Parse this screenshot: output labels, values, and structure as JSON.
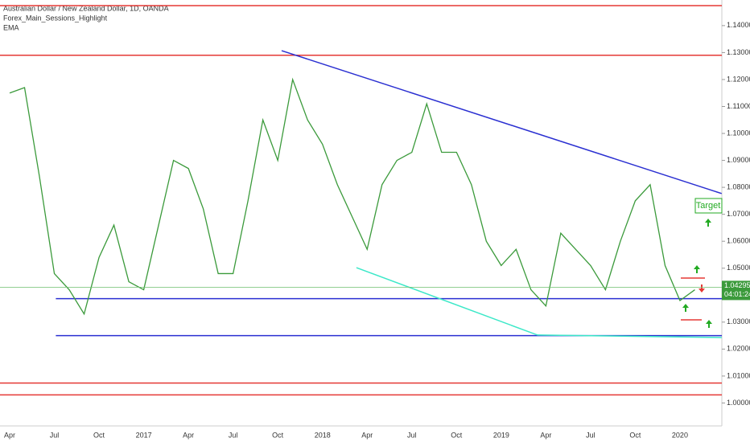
{
  "chart_data": {
    "type": "line",
    "title": "Australian Dollar / New Zealand Dollar, 1D, OANDA",
    "indicators": [
      "Forex_Main_Sessions_Highlight",
      "EMA"
    ],
    "categories": [
      "Apr",
      null,
      null,
      "Jul",
      null,
      null,
      "Oct",
      null,
      null,
      "2017",
      null,
      null,
      "Apr",
      null,
      null,
      "Jul",
      null,
      null,
      "Oct",
      null,
      null,
      "2018",
      null,
      null,
      "Apr",
      null,
      null,
      "Jul",
      null,
      null,
      "Oct",
      null,
      null,
      "2019",
      null,
      null,
      "Apr",
      null,
      null,
      "Jul",
      null,
      null,
      "Oct",
      null,
      null,
      "2020",
      null
    ],
    "series": [
      {
        "color": "#3b9a3b",
        "values": [
          1.115,
          1.117,
          1.084,
          1.048,
          1.042,
          1.033,
          1.054,
          1.066,
          1.045,
          1.042,
          1.066,
          1.09,
          1.087,
          1.072,
          1.048,
          1.048,
          1.075,
          1.105,
          1.09,
          1.12,
          1.105,
          1.096,
          1.081,
          1.069,
          1.057,
          1.081,
          1.09,
          1.093,
          1.111,
          1.093,
          1.093,
          1.081,
          1.06,
          1.051,
          1.057,
          1.042,
          1.036,
          1.063,
          1.057,
          1.051,
          1.042,
          1.06,
          1.075,
          1.081,
          1.051,
          1.038,
          1.042
        ]
      }
    ],
    "ylim": [
      0.99,
      1.1495
    ],
    "yticks": [
      {
        "value": 1.0,
        "label": "1.00000"
      },
      {
        "value": 1.01,
        "label": "1.01000"
      },
      {
        "value": 1.02,
        "label": "1.02000"
      },
      {
        "value": 1.03,
        "label": "1.03000"
      },
      {
        "value": 1.04,
        "label": "1.04000"
      },
      {
        "value": 1.05,
        "label": "1.05000"
      },
      {
        "value": 1.06,
        "label": "1.06000"
      },
      {
        "value": 1.07,
        "label": "1.07000"
      },
      {
        "value": 1.08,
        "label": "1.08000"
      },
      {
        "value": 1.09,
        "label": "1.09000"
      },
      {
        "value": 1.1,
        "label": "1.10000"
      },
      {
        "value": 1.11,
        "label": "1.11000"
      },
      {
        "value": 1.12,
        "label": "1.12000"
      },
      {
        "value": 1.13,
        "label": "1.13000"
      },
      {
        "value": 1.14,
        "label": "1.14000"
      }
    ],
    "last_price": {
      "value": 1.04295,
      "label": "1.04295"
    },
    "countdown": "04:01:24",
    "target_label": "Target",
    "hlines": [
      {
        "value": 1.1474,
        "color": "#e53935"
      },
      {
        "value": 1.129,
        "color": "#e53935"
      },
      {
        "value": 1.0074,
        "color": "#e53935"
      },
      {
        "value": 1.003,
        "color": "#e53935"
      },
      {
        "value": 1.0387,
        "color": "#2a2fd1",
        "from": 3.1
      },
      {
        "value": 1.025,
        "color": "#2a2fd1",
        "from": 3.1
      }
    ],
    "trendlines": [
      {
        "color": "#2a2fd1",
        "points": [
          [
            18.26,
            1.1307
          ],
          [
            47.8,
            1.0777
          ]
        ]
      },
      {
        "color": "#3ce8c8",
        "points": [
          [
            23.28,
            1.0502
          ],
          [
            35.44,
            1.0252
          ],
          [
            47.8,
            1.0243
          ]
        ]
      }
    ]
  }
}
